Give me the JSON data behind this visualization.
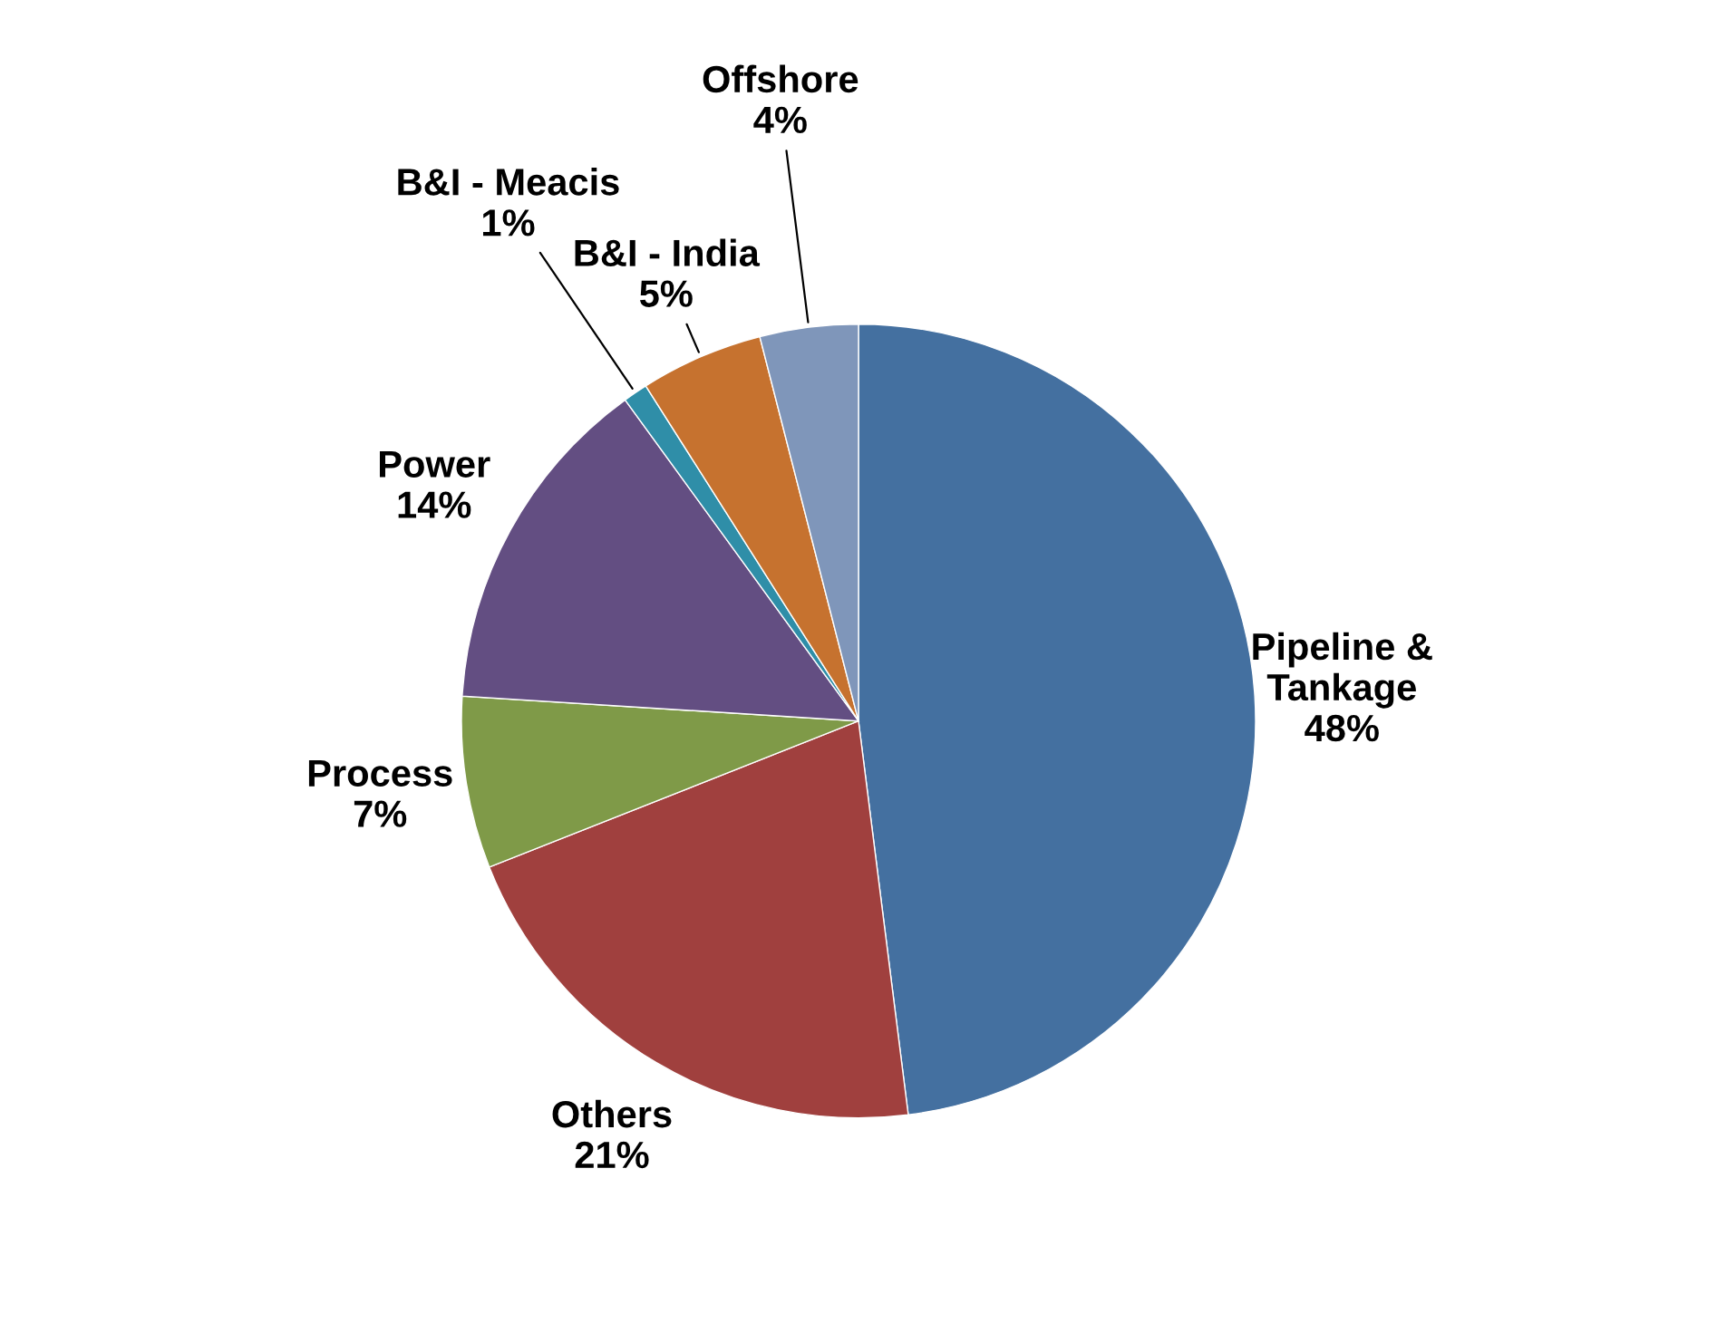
{
  "chart_data": {
    "type": "pie",
    "categories": [
      "Pipeline &\nTankage",
      "Others",
      "Process",
      "Power",
      "B&I - Meacis",
      "B&I - India",
      "Offshore"
    ],
    "values": [
      48,
      21,
      7,
      14,
      1,
      5,
      4
    ],
    "colors": [
      "#4470a0",
      "#a0403e",
      "#7f9a48",
      "#634e82",
      "#2f8ea8",
      "#c6722f",
      "#7f96ba"
    ],
    "value_labels": [
      "48%",
      "21%",
      "7%",
      "14%",
      "1%",
      "5%",
      "4%"
    ],
    "legend": false
  }
}
